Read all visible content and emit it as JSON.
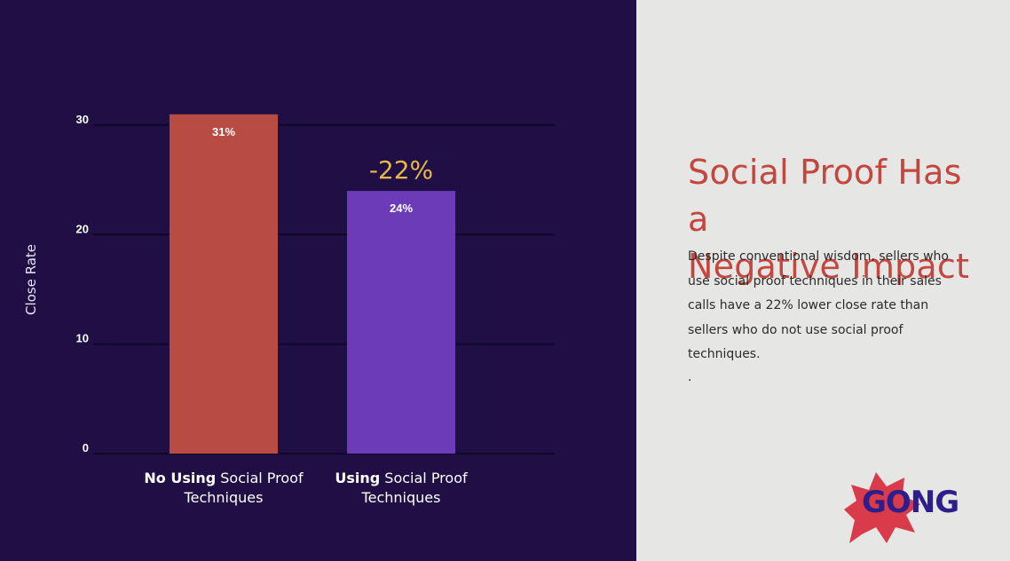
{
  "chart_data": {
    "type": "bar",
    "categories": [
      {
        "bold": "No Using",
        "rest": " Social Proof",
        "line2": "Techniques"
      },
      {
        "bold": "Using",
        "rest": " Social Proof",
        "line2": "Techniques"
      }
    ],
    "values": [
      31,
      24
    ],
    "data_labels": [
      "31%",
      "24%"
    ],
    "annotation": "-22%",
    "title": "",
    "xlabel": "",
    "ylabel": "Close Rate",
    "ylim": [
      0,
      31
    ],
    "yticks": [
      0,
      10,
      20,
      30
    ],
    "grid": true,
    "colors": {
      "bars": [
        "#b84c42",
        "#6b3bb8"
      ],
      "annotation": "#e8b84a",
      "background": "#1f0f45",
      "grid": "#0f0826"
    }
  },
  "panel": {
    "headline_line1": "Social Proof Has a",
    "headline_line2": "Negative Impact",
    "body": "Despite conventional wisdom, sellers who use social proof techniques in their sales calls have a 22% lower close rate than sellers who do not use social proof techniques.",
    "dot": "."
  },
  "logo": {
    "text": "GONG",
    "icon": "starburst-icon",
    "burst_color": "#d93b4a",
    "text_color": "#2d1e8c"
  }
}
